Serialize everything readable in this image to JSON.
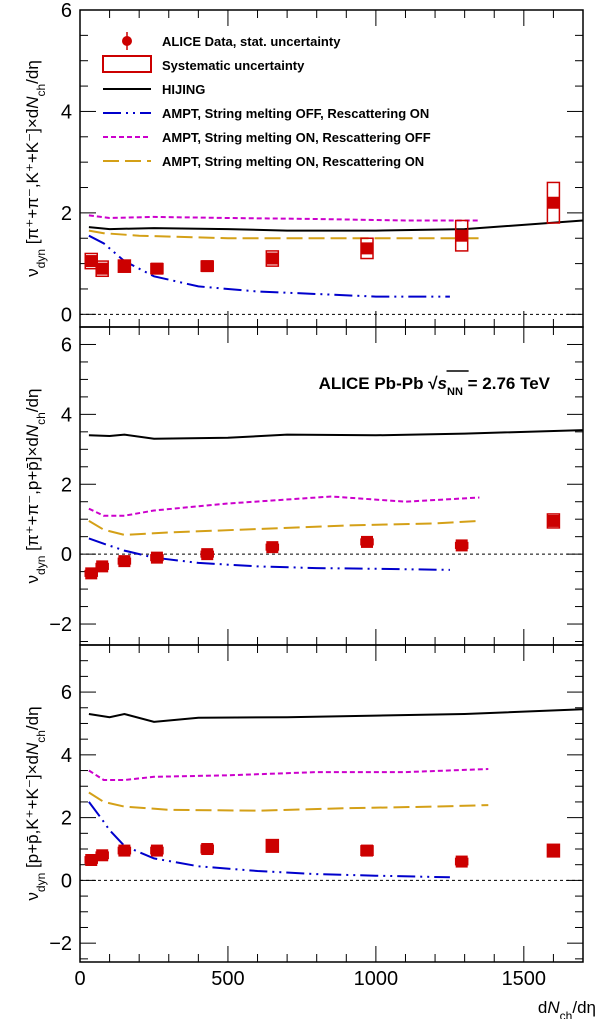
{
  "chart_data": {
    "type": "scatter",
    "x_axis": {
      "range": [
        0,
        1700
      ],
      "ticks": [
        0,
        500,
        1000,
        1500
      ],
      "tick_labels": [
        "0",
        "500",
        "1000",
        "1500"
      ],
      "title_prefix": "d",
      "title_var": "N",
      "title_sub": "ch",
      "title_suffix": "/dη"
    },
    "legend": [
      {
        "label": "ALICE Data, stat. uncertainty",
        "style": "marker",
        "color": "#cc0000"
      },
      {
        "label": "Systematic uncertainty",
        "style": "box",
        "color": "#cc0000"
      },
      {
        "label": "HIJING",
        "style": "solid",
        "color": "#000000"
      },
      {
        "label": "AMPT, String melting OFF, Rescattering ON",
        "style": "dashdot",
        "color": "#0000cc"
      },
      {
        "label": "AMPT, String melting ON, Rescattering OFF",
        "style": "dash",
        "color": "#cc00cc"
      },
      {
        "label": "AMPT, String melting ON, Rescattering ON",
        "style": "longdash",
        "color": "#d4a017"
      }
    ],
    "annotation": {
      "pre": "ALICE Pb-Pb  ",
      "s": "s",
      "sub": "NN",
      "post": " = 2.76 TeV"
    },
    "panels": [
      {
        "ylabel": "ν_dyn [π⁺+π⁻,K⁺+K⁻]×dN_ch/dη",
        "ylabel_parts": {
          "pair": "[π⁺+π⁻,K⁺+K⁻]×d",
          "var": "N",
          "sub": "ch",
          "tail": "/dη"
        },
        "ylim": [
          -0.25,
          6
        ],
        "yticks": [
          0,
          2,
          4,
          6
        ],
        "ytick_labels": [
          "0",
          "2",
          "4",
          "6"
        ],
        "data": {
          "x": [
            38,
            75,
            150,
            260,
            430,
            650,
            970,
            1290,
            1600
          ],
          "y": [
            1.05,
            0.9,
            0.95,
            0.9,
            0.95,
            1.1,
            1.3,
            1.55,
            2.2
          ],
          "sys": [
            0.15,
            0.15,
            0.12,
            0.1,
            0.1,
            0.15,
            0.2,
            0.3,
            0.4
          ]
        },
        "series": [
          {
            "model": "HIJING",
            "x": [
              30,
              100,
              250,
              500,
              700,
              1000,
              1300,
              1700
            ],
            "y": [
              1.72,
              1.68,
              1.7,
              1.68,
              1.65,
              1.65,
              1.68,
              1.85
            ]
          },
          {
            "model": "AMPT SM OFF RS ON",
            "x": [
              30,
              80,
              150,
              250,
              400,
              600,
              800,
              1000,
              1250
            ],
            "y": [
              1.55,
              1.4,
              1.05,
              0.75,
              0.55,
              0.45,
              0.4,
              0.35,
              0.35
            ]
          },
          {
            "model": "AMPT SM ON RS OFF",
            "x": [
              30,
              100,
              250,
              500,
              800,
              1100,
              1350
            ],
            "y": [
              1.95,
              1.9,
              1.92,
              1.9,
              1.88,
              1.85,
              1.85
            ]
          },
          {
            "model": "AMPT SM ON RS ON",
            "x": [
              30,
              80,
              200,
              500,
              800,
              1100,
              1350
            ],
            "y": [
              1.65,
              1.6,
              1.55,
              1.5,
              1.5,
              1.5,
              1.5
            ]
          }
        ]
      },
      {
        "ylabel": "ν_dyn [π⁺+π⁻,p+p̄]×dN_ch/dη",
        "ylabel_parts": {
          "pair": "[π⁺+π⁻,p+p̄]×d",
          "var": "N",
          "sub": "ch",
          "tail": "/dη"
        },
        "ylim": [
          -2.6,
          6.5
        ],
        "yticks": [
          -2,
          0,
          2,
          4,
          6
        ],
        "ytick_labels": [
          "−2",
          "0",
          "2",
          "4",
          "6"
        ],
        "data": {
          "x": [
            38,
            75,
            150,
            260,
            430,
            650,
            970,
            1290,
            1600
          ],
          "y": [
            -0.55,
            -0.35,
            -0.2,
            -0.1,
            0.0,
            0.2,
            0.35,
            0.25,
            0.95
          ],
          "sys": [
            0.08,
            0.08,
            0.08,
            0.08,
            0.08,
            0.08,
            0.08,
            0.08,
            0.2
          ]
        },
        "series": [
          {
            "model": "HIJING",
            "x": [
              30,
              100,
              150,
              250,
              500,
              700,
              1000,
              1300,
              1700
            ],
            "y": [
              3.4,
              3.38,
              3.42,
              3.3,
              3.33,
              3.42,
              3.4,
              3.45,
              3.55
            ]
          },
          {
            "model": "AMPT SM OFF RS ON",
            "x": [
              30,
              80,
              150,
              250,
              400,
              600,
              800,
              1000,
              1250
            ],
            "y": [
              0.45,
              0.3,
              0.1,
              -0.1,
              -0.25,
              -0.35,
              -0.4,
              -0.42,
              -0.45
            ]
          },
          {
            "model": "AMPT SM ON RS OFF",
            "x": [
              30,
              80,
              150,
              250,
              500,
              850,
              1100,
              1350
            ],
            "y": [
              1.3,
              1.1,
              1.1,
              1.25,
              1.45,
              1.65,
              1.5,
              1.62
            ]
          },
          {
            "model": "AMPT SM ON RS ON",
            "x": [
              30,
              80,
              150,
              300,
              600,
              900,
              1200,
              1350
            ],
            "y": [
              0.95,
              0.7,
              0.55,
              0.62,
              0.72,
              0.82,
              0.88,
              0.95
            ]
          }
        ]
      },
      {
        "ylabel": "ν_dyn [p+p̄,K⁺+K⁻]×dN_ch/dη",
        "ylabel_parts": {
          "pair": "[p+p̄,K⁺+K⁻]×d",
          "var": "N",
          "sub": "ch",
          "tail": "/dη"
        },
        "ylim": [
          -2.6,
          7.5
        ],
        "yticks": [
          -2,
          0,
          2,
          4,
          6
        ],
        "ytick_labels": [
          "−2",
          "0",
          "2",
          "4",
          "6"
        ],
        "data": {
          "x": [
            38,
            75,
            150,
            260,
            430,
            650,
            970,
            1290,
            1600
          ],
          "y": [
            0.65,
            0.8,
            0.95,
            0.95,
            1.0,
            1.1,
            0.95,
            0.6,
            0.95
          ],
          "sys": [
            0.1,
            0.1,
            0.1,
            0.1,
            0.12,
            0.2,
            0.15,
            0.1,
            0.2
          ]
        },
        "series": [
          {
            "model": "HIJING",
            "x": [
              30,
              100,
              150,
              250,
              400,
              700,
              1000,
              1300,
              1700
            ],
            "y": [
              5.3,
              5.2,
              5.3,
              5.05,
              5.18,
              5.2,
              5.25,
              5.3,
              5.45
            ]
          },
          {
            "model": "AMPT SM OFF RS ON",
            "x": [
              30,
              70,
              100,
              150,
              250,
              400,
              600,
              800,
              1000,
              1250
            ],
            "y": [
              2.5,
              2.0,
              1.6,
              1.1,
              0.7,
              0.45,
              0.3,
              0.2,
              0.15,
              0.1
            ]
          },
          {
            "model": "AMPT SM ON RS OFF",
            "x": [
              30,
              80,
              150,
              250,
              500,
              800,
              1100,
              1380
            ],
            "y": [
              3.5,
              3.2,
              3.2,
              3.3,
              3.35,
              3.45,
              3.45,
              3.55
            ]
          },
          {
            "model": "AMPT SM ON RS ON",
            "x": [
              30,
              80,
              150,
              300,
              600,
              900,
              1200,
              1380
            ],
            "y": [
              2.8,
              2.5,
              2.35,
              2.25,
              2.22,
              2.3,
              2.35,
              2.4
            ]
          }
        ]
      }
    ]
  }
}
